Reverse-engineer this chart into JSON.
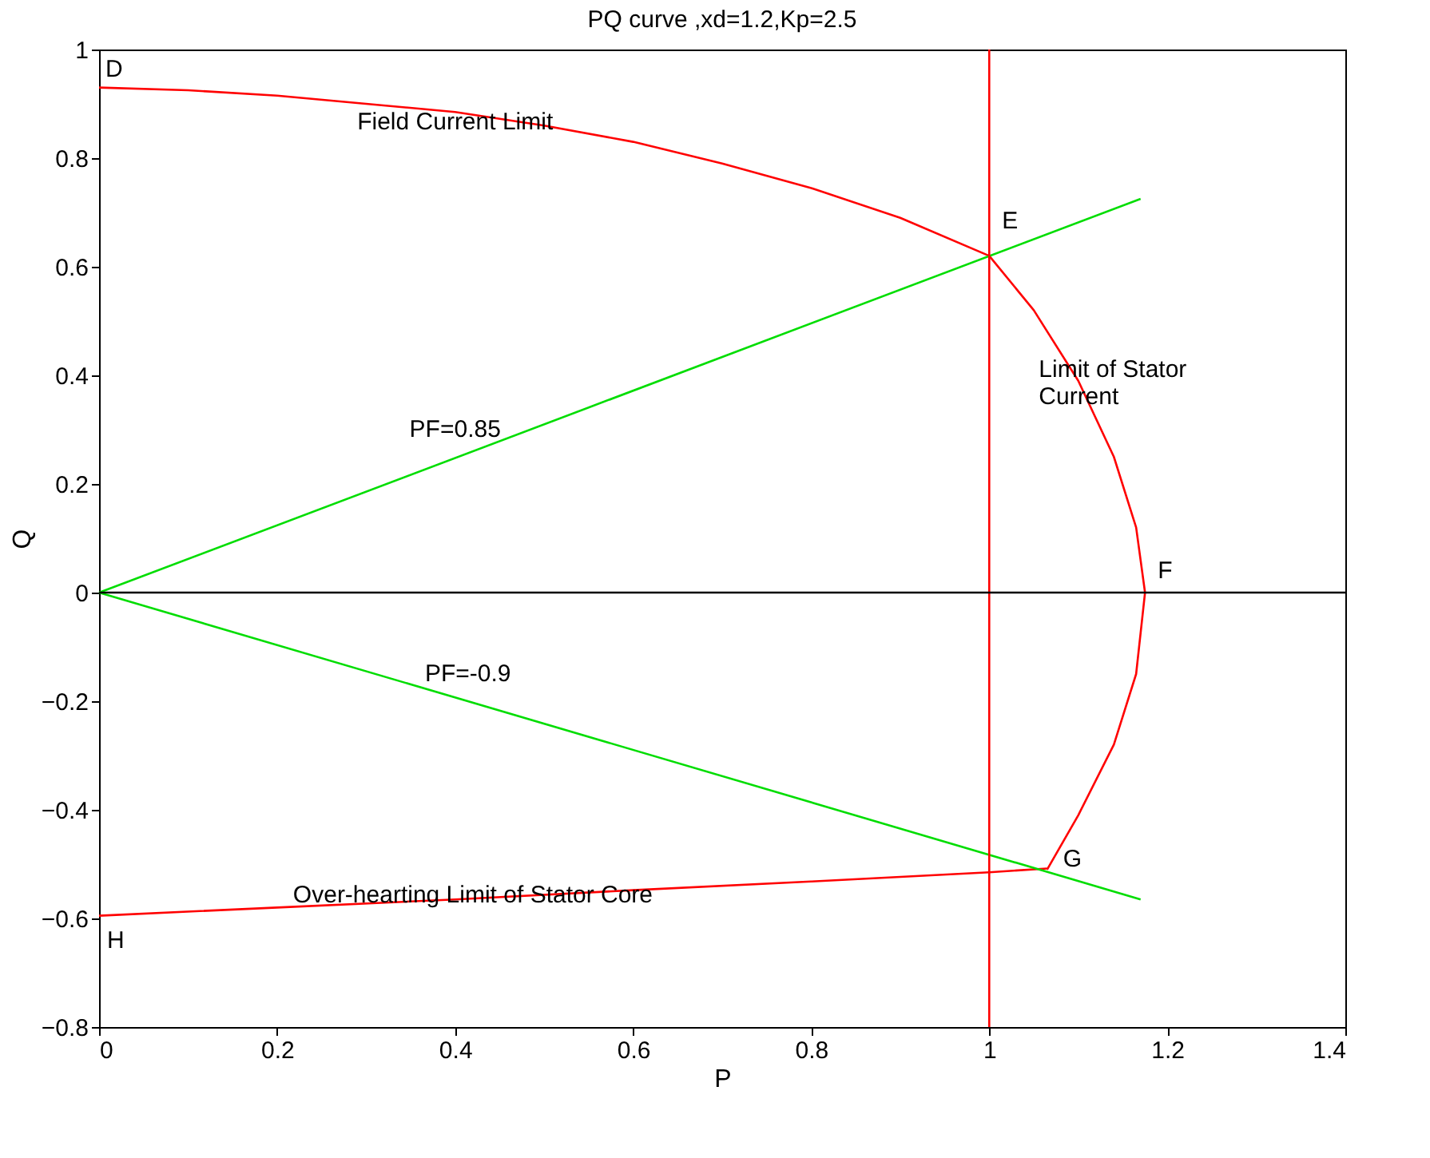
{
  "chart_data": {
    "type": "line",
    "title": "PQ curve ,xd=1.2,Kp=2.5",
    "xlabel": "P",
    "ylabel": "Q",
    "xlim": [
      0,
      1.4
    ],
    "xticks": [
      0,
      0.2,
      0.4,
      0.6,
      0.8,
      1,
      1.2,
      1.4
    ],
    "ylim": [
      -0.8,
      1
    ],
    "yticks": [
      -0.8,
      -0.6,
      -0.4,
      -0.2,
      0,
      0.2,
      0.4,
      0.6,
      0.8,
      1
    ],
    "grid": false,
    "marker": "none",
    "line_style": "solid",
    "series": [
      {
        "color": "#ff0000",
        "x": [
          0,
          0.1,
          0.2,
          0.3,
          0.4,
          0.5,
          0.6,
          0.7,
          0.8,
          0.9,
          1.0
        ],
        "values": [
          0.93,
          0.925,
          0.915,
          0.9,
          0.885,
          0.86,
          0.83,
          0.79,
          0.745,
          0.69,
          0.62
        ]
      },
      {
        "color": "#ff0000",
        "x": [
          1.0,
          1.05,
          1.1,
          1.14,
          1.165,
          1.175,
          1.165,
          1.14,
          1.1,
          1.065
        ],
        "values": [
          0.62,
          0.52,
          0.39,
          0.25,
          0.12,
          0,
          -0.15,
          -0.28,
          -0.41,
          -0.51
        ]
      },
      {
        "color": "#ff0000",
        "x": [
          0,
          0.2,
          0.4,
          0.6,
          0.8,
          1.0,
          1.065
        ],
        "values": [
          -0.595,
          -0.58,
          -0.565,
          -0.548,
          -0.532,
          -0.515,
          -0.508
        ]
      },
      {
        "color": "#00dd00",
        "x": [
          0,
          1.17
        ],
        "values": [
          0,
          0.725
        ]
      },
      {
        "color": "#00dd00",
        "x": [
          0,
          1.17
        ],
        "values": [
          0,
          -0.565
        ]
      }
    ],
    "ref_lines": [
      {
        "axis": "x",
        "value": 1,
        "color": "#ff0000"
      },
      {
        "axis": "y",
        "value": 0,
        "color": "#000000"
      }
    ],
    "annotations": [
      {
        "text": "D",
        "x": 0,
        "y": 0.93
      },
      {
        "text": "Field Current Limit",
        "x": 0.4,
        "y": 0.885
      },
      {
        "text": "E",
        "x": 1.0,
        "y": 0.62
      },
      {
        "text": "Limit of Stator\nCurrent",
        "x": 1.14,
        "y": 0.25
      },
      {
        "text": "PF=0.85",
        "x": 0.4,
        "y": 0.248
      },
      {
        "text": "F",
        "x": 1.175,
        "y": 0
      },
      {
        "text": "PF=-0.9",
        "x": 0.4,
        "y": -0.193
      },
      {
        "text": "G",
        "x": 1.065,
        "y": -0.508
      },
      {
        "text": "Over-hearting Limit of Stator Core",
        "x": 0.2,
        "y": -0.58
      },
      {
        "text": "H",
        "x": 0,
        "y": -0.595
      }
    ]
  }
}
